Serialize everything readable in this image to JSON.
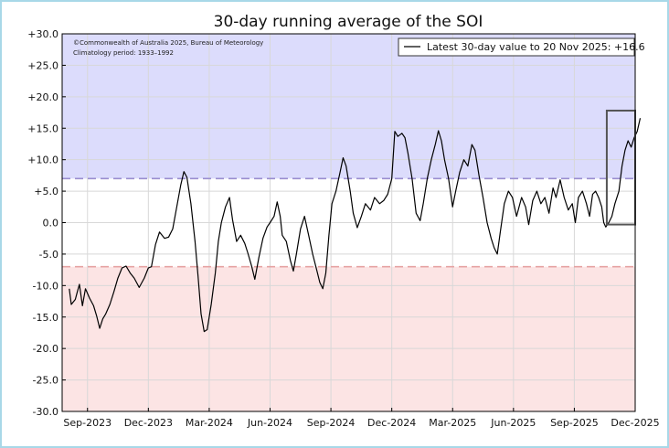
{
  "chart_data": {
    "type": "line",
    "title": "30-day running average of the SOI",
    "xlabel": "",
    "ylabel": "",
    "ylim": [
      -30,
      30
    ],
    "yticks": [
      "+30.0",
      "+25.0",
      "+20.0",
      "+15.0",
      "+10.0",
      "+5.0",
      "0.0",
      "-5.0",
      "-10.0",
      "-15.0",
      "-20.0",
      "-25.0",
      "-30.0"
    ],
    "xticks": [
      {
        "label": "Sep-2023",
        "pos": 0.0
      },
      {
        "label": "Dec-2023",
        "pos": 3.0
      },
      {
        "label": "Mar-2024",
        "pos": 6.0
      },
      {
        "label": "Jun-2024",
        "pos": 9.0
      },
      {
        "label": "Sep-2024",
        "pos": 12.0
      },
      {
        "label": "Dec-2024",
        "pos": 15.0
      },
      {
        "label": "Mar-2025",
        "pos": 18.0
      },
      {
        "label": "Jun-2025",
        "pos": 21.0
      },
      {
        "label": "Sep-2025",
        "pos": 24.0
      },
      {
        "label": "Dec-2025",
        "pos": 27.0
      }
    ],
    "x_unit": "months after Sep-2023",
    "xlim": [
      -1.25,
      27.0
    ],
    "thresholds": [
      7,
      -7
    ],
    "shading": {
      "above": "#dcdcfc",
      "below": "#fce4e4"
    },
    "legend": "Latest 30-day value to 20 Nov 2025: +16.6",
    "legend_position": "top-right",
    "annotations": [
      "©Commonwealth of Australia 2025, Bureau of Meteorology",
      "Climatology period: 1933–1992"
    ],
    "grid": true,
    "highlight_box": {
      "x_range": [
        25.6,
        27.0
      ],
      "y_range": [
        -0.3,
        17.8
      ]
    },
    "series": [
      {
        "name": "",
        "points": [
          [
            -0.9,
            -10.5
          ],
          [
            -0.8,
            -13.0
          ],
          [
            -0.6,
            -12.2
          ],
          [
            -0.5,
            -11.0
          ],
          [
            -0.4,
            -9.8
          ],
          [
            -0.25,
            -13.2
          ],
          [
            -0.1,
            -10.5
          ],
          [
            0.1,
            -12.0
          ],
          [
            0.3,
            -13.2
          ],
          [
            0.45,
            -14.8
          ],
          [
            0.6,
            -16.8
          ],
          [
            0.75,
            -15.3
          ],
          [
            0.9,
            -14.5
          ],
          [
            1.1,
            -13.0
          ],
          [
            1.3,
            -11.0
          ],
          [
            1.5,
            -8.8
          ],
          [
            1.7,
            -7.2
          ],
          [
            1.9,
            -6.9
          ],
          [
            2.1,
            -8.0
          ],
          [
            2.3,
            -8.8
          ],
          [
            2.55,
            -10.3
          ],
          [
            2.8,
            -8.8
          ],
          [
            3.0,
            -7.2
          ],
          [
            3.15,
            -7.0
          ],
          [
            3.35,
            -3.5
          ],
          [
            3.55,
            -1.5
          ],
          [
            3.8,
            -2.5
          ],
          [
            4.0,
            -2.3
          ],
          [
            4.2,
            -1.0
          ],
          [
            4.4,
            2.5
          ],
          [
            4.6,
            6.0
          ],
          [
            4.75,
            8.1
          ],
          [
            4.9,
            7.2
          ],
          [
            5.1,
            3.0
          ],
          [
            5.3,
            -3.0
          ],
          [
            5.45,
            -8.5
          ],
          [
            5.6,
            -14.5
          ],
          [
            5.75,
            -17.3
          ],
          [
            5.9,
            -17.0
          ],
          [
            6.1,
            -13.0
          ],
          [
            6.3,
            -8.0
          ],
          [
            6.45,
            -3.0
          ],
          [
            6.6,
            0.0
          ],
          [
            6.8,
            2.5
          ],
          [
            7.0,
            4.0
          ],
          [
            7.15,
            0.5
          ],
          [
            7.35,
            -3.0
          ],
          [
            7.55,
            -2.0
          ],
          [
            7.75,
            -3.3
          ],
          [
            7.9,
            -4.8
          ],
          [
            8.1,
            -7.0
          ],
          [
            8.25,
            -9.0
          ],
          [
            8.45,
            -5.5
          ],
          [
            8.65,
            -2.5
          ],
          [
            8.85,
            -0.7
          ],
          [
            9.0,
            0.0
          ],
          [
            9.2,
            1.0
          ],
          [
            9.35,
            3.3
          ],
          [
            9.5,
            1.0
          ],
          [
            9.6,
            -2.0
          ],
          [
            9.8,
            -3.0
          ],
          [
            10.0,
            -6.0
          ],
          [
            10.15,
            -7.7
          ],
          [
            10.3,
            -5.0
          ],
          [
            10.5,
            -1.0
          ],
          [
            10.7,
            1.0
          ],
          [
            10.9,
            -2.0
          ],
          [
            11.1,
            -5.0
          ],
          [
            11.3,
            -7.5
          ],
          [
            11.45,
            -9.5
          ],
          [
            11.6,
            -10.5
          ],
          [
            11.75,
            -8.0
          ],
          [
            11.9,
            -2.0
          ],
          [
            12.05,
            3.0
          ],
          [
            12.25,
            5.0
          ],
          [
            12.45,
            8.0
          ],
          [
            12.6,
            10.3
          ],
          [
            12.75,
            9.0
          ],
          [
            12.95,
            5.0
          ],
          [
            13.1,
            1.5
          ],
          [
            13.3,
            -0.8
          ],
          [
            13.5,
            1.0
          ],
          [
            13.7,
            3.0
          ],
          [
            13.95,
            2.0
          ],
          [
            14.15,
            4.0
          ],
          [
            14.4,
            3.0
          ],
          [
            14.6,
            3.5
          ],
          [
            14.8,
            4.5
          ],
          [
            15.0,
            7.0
          ],
          [
            15.15,
            14.5
          ],
          [
            15.3,
            13.7
          ],
          [
            15.5,
            14.2
          ],
          [
            15.65,
            13.5
          ],
          [
            15.8,
            11.0
          ],
          [
            16.0,
            7.0
          ],
          [
            16.2,
            1.5
          ],
          [
            16.4,
            0.3
          ],
          [
            16.55,
            3.0
          ],
          [
            16.75,
            7.0
          ],
          [
            16.95,
            10.0
          ],
          [
            17.15,
            12.5
          ],
          [
            17.3,
            14.6
          ],
          [
            17.45,
            13.0
          ],
          [
            17.6,
            10.0
          ],
          [
            17.8,
            7.0
          ],
          [
            18.0,
            2.5
          ],
          [
            18.15,
            5.0
          ],
          [
            18.35,
            8.0
          ],
          [
            18.55,
            10.0
          ],
          [
            18.75,
            9.0
          ],
          [
            18.95,
            12.4
          ],
          [
            19.1,
            11.5
          ],
          [
            19.3,
            7.5
          ],
          [
            19.5,
            4.0
          ],
          [
            19.7,
            0.0
          ],
          [
            19.9,
            -2.5
          ],
          [
            20.05,
            -4.0
          ],
          [
            20.2,
            -5.0
          ],
          [
            20.35,
            -1.5
          ],
          [
            20.55,
            3.0
          ],
          [
            20.75,
            5.0
          ],
          [
            20.95,
            4.0
          ],
          [
            21.15,
            1.0
          ],
          [
            21.4,
            4.0
          ],
          [
            21.6,
            2.5
          ],
          [
            21.75,
            -0.3
          ],
          [
            21.95,
            3.5
          ],
          [
            22.15,
            5.0
          ],
          [
            22.35,
            3.0
          ],
          [
            22.55,
            4.0
          ],
          [
            22.75,
            1.5
          ],
          [
            22.95,
            5.5
          ],
          [
            23.1,
            4.0
          ],
          [
            23.3,
            6.8
          ],
          [
            23.5,
            4.0
          ],
          [
            23.7,
            2.0
          ],
          [
            23.9,
            3.0
          ],
          [
            24.05,
            0.0
          ],
          [
            24.2,
            4.0
          ],
          [
            24.4,
            5.0
          ],
          [
            24.6,
            3.0
          ],
          [
            24.75,
            1.0
          ],
          [
            24.9,
            4.5
          ],
          [
            25.05,
            5.0
          ],
          [
            25.2,
            4.0
          ],
          [
            25.35,
            2.5
          ],
          [
            25.45,
            0.0
          ],
          [
            25.55,
            -0.7
          ],
          [
            25.7,
            0.0
          ],
          [
            25.85,
            1.0
          ],
          [
            26.0,
            3.0
          ],
          [
            26.2,
            5.0
          ],
          [
            26.35,
            9.0
          ],
          [
            26.5,
            11.5
          ],
          [
            26.65,
            13.0
          ],
          [
            26.8,
            12.0
          ],
          [
            26.95,
            13.5
          ],
          [
            27.1,
            14.5
          ],
          [
            27.25,
            16.6
          ]
        ]
      }
    ]
  }
}
